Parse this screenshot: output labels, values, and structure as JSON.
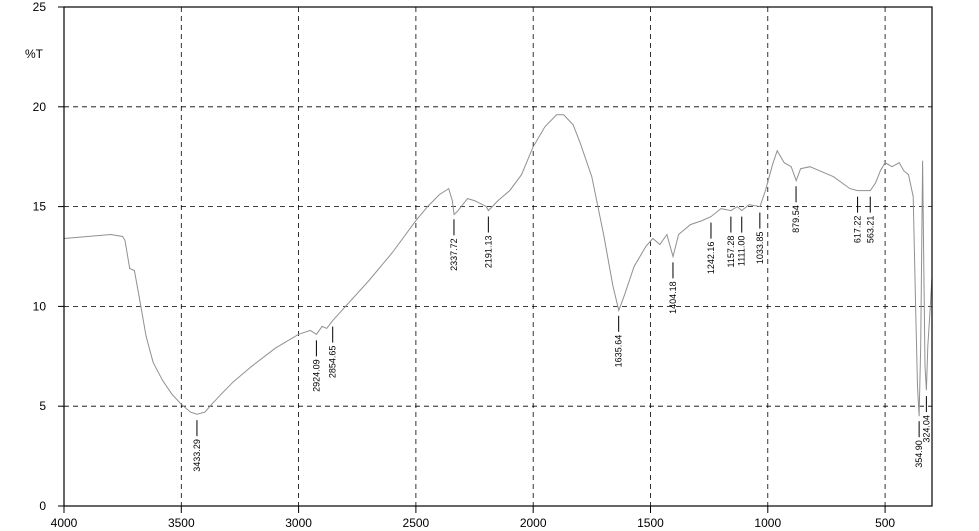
{
  "chart_data": {
    "type": "line",
    "y_label": "%T",
    "color": "#909090",
    "xlim": [
      4000,
      300
    ],
    "ylim": [
      0,
      25
    ],
    "xticks": [
      4000,
      3500,
      3000,
      2500,
      2000,
      1500,
      1000,
      500
    ],
    "yticks": [
      0,
      5,
      10,
      15,
      20,
      25
    ],
    "grid": true,
    "x": [
      4000,
      3900,
      3800,
      3750,
      3740,
      3720,
      3700,
      3680,
      3650,
      3620,
      3580,
      3540,
      3500,
      3460,
      3433,
      3400,
      3370,
      3330,
      3280,
      3200,
      3100,
      3000,
      2950,
      2924,
      2900,
      2880,
      2854,
      2800,
      2700,
      2600,
      2500,
      2450,
      2400,
      2360,
      2345,
      2337,
      2320,
      2280,
      2250,
      2200,
      2191,
      2150,
      2100,
      2050,
      2000,
      1950,
      1900,
      1870,
      1830,
      1800,
      1750,
      1700,
      1660,
      1635,
      1610,
      1570,
      1520,
      1490,
      1460,
      1430,
      1404,
      1380,
      1330,
      1280,
      1242,
      1200,
      1157,
      1130,
      1111,
      1080,
      1033,
      1010,
      980,
      960,
      930,
      900,
      879,
      860,
      820,
      780,
      720,
      650,
      617,
      590,
      563,
      540,
      520,
      500,
      470,
      440,
      420,
      400,
      380,
      370,
      362,
      355,
      348,
      340,
      335,
      330,
      324,
      318,
      310,
      300
    ],
    "values": [
      13.4,
      13.5,
      13.6,
      13.5,
      13.3,
      11.9,
      11.8,
      10.5,
      8.5,
      7.2,
      6.3,
      5.6,
      5.1,
      4.7,
      4.6,
      4.7,
      5.1,
      5.6,
      6.2,
      7.0,
      7.9,
      8.6,
      8.8,
      8.6,
      9.0,
      8.9,
      9.3,
      10.0,
      11.3,
      12.7,
      14.3,
      15.0,
      15.6,
      15.9,
      15.3,
      14.6,
      14.8,
      15.4,
      15.3,
      15.0,
      14.8,
      15.3,
      15.8,
      16.6,
      18.0,
      19.0,
      19.6,
      19.6,
      19.1,
      18.2,
      16.5,
      13.6,
      11.0,
      9.8,
      10.6,
      12.0,
      13.0,
      13.4,
      13.1,
      13.6,
      12.5,
      13.6,
      14.1,
      14.3,
      14.5,
      14.9,
      14.8,
      15.0,
      14.8,
      15.1,
      15.0,
      15.8,
      17.1,
      17.8,
      17.2,
      17.0,
      16.3,
      16.9,
      17.0,
      16.8,
      16.5,
      15.9,
      15.8,
      15.8,
      15.8,
      16.2,
      16.8,
      17.2,
      17.0,
      17.2,
      16.8,
      16.6,
      15.5,
      10.0,
      6.0,
      4.5,
      8.0,
      17.3,
      12.0,
      7.0,
      5.8,
      8.0,
      9.5,
      11.5
    ],
    "peaks": [
      3433.29,
      2924.09,
      2854.65,
      2337.72,
      2191.13,
      1635.64,
      1404.18,
      1242.16,
      1157.28,
      {
        "value": 1111,
        "label": "1111.00"
      },
      1033.85,
      879.54,
      617.22,
      563.21,
      {
        "value": 354.9,
        "label": "354.90"
      },
      324.04
    ]
  }
}
